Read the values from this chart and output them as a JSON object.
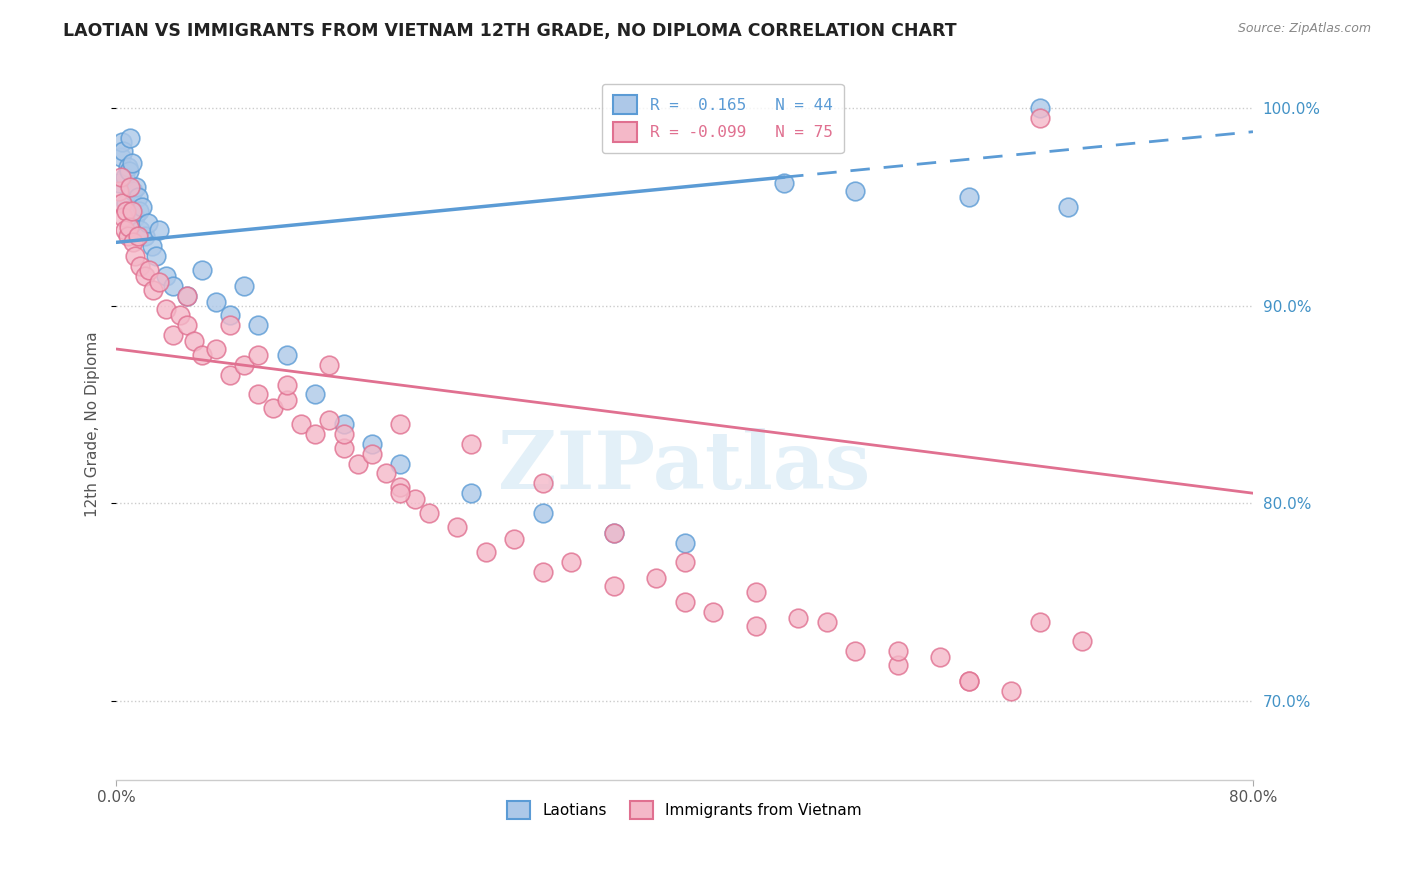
{
  "title": "LAOTIAN VS IMMIGRANTS FROM VIETNAM 12TH GRADE, NO DIPLOMA CORRELATION CHART",
  "source": "Source: ZipAtlas.com",
  "ylabel": "12th Grade, No Diploma",
  "watermark": "ZIPatlas",
  "bg_color": "#ffffff",
  "blue_color": "#5b9bd5",
  "blue_fill": "#adc8e8",
  "pink_color": "#e07090",
  "pink_fill": "#f4b8c8",
  "grid_color": "#cccccc",
  "axis_label_color": "#4292c6",
  "xlim": [
    0,
    80
  ],
  "ylim": [
    66,
    102
  ],
  "blue_line_x0": 0.0,
  "blue_line_y0": 93.2,
  "blue_line_x1": 47.0,
  "blue_line_y1": 96.5,
  "blue_dash_x0": 47.0,
  "blue_dash_y0": 96.5,
  "blue_dash_x1": 80.0,
  "blue_dash_y1": 98.8,
  "pink_line_x0": 0.0,
  "pink_line_y0": 87.8,
  "pink_line_x1": 80.0,
  "pink_line_y1": 80.5,
  "blue_x": [
    0.2,
    0.3,
    0.4,
    0.5,
    0.6,
    0.7,
    0.8,
    0.9,
    1.0,
    1.1,
    1.2,
    1.3,
    1.4,
    1.5,
    1.6,
    1.7,
    1.8,
    2.0,
    2.2,
    2.5,
    2.8,
    3.0,
    3.5,
    4.0,
    5.0,
    6.0,
    7.0,
    8.0,
    9.0,
    10.0,
    12.0,
    14.0,
    16.0,
    18.0,
    20.0,
    25.0,
    30.0,
    35.0,
    40.0,
    47.0,
    52.0,
    60.0,
    65.0,
    67.0
  ],
  "blue_y": [
    96.2,
    97.5,
    98.3,
    97.8,
    96.5,
    95.2,
    97.0,
    96.8,
    98.5,
    97.2,
    95.8,
    94.5,
    96.0,
    95.5,
    94.8,
    93.8,
    95.0,
    93.5,
    94.2,
    93.0,
    92.5,
    93.8,
    91.5,
    91.0,
    90.5,
    91.8,
    90.2,
    89.5,
    91.0,
    89.0,
    87.5,
    85.5,
    84.0,
    83.0,
    82.0,
    80.5,
    79.5,
    78.5,
    78.0,
    96.2,
    95.8,
    95.5,
    100.0,
    95.0
  ],
  "pink_x": [
    0.2,
    0.3,
    0.4,
    0.5,
    0.6,
    0.7,
    0.8,
    0.9,
    1.0,
    1.1,
    1.2,
    1.3,
    1.5,
    1.7,
    2.0,
    2.3,
    2.6,
    3.0,
    3.5,
    4.0,
    4.5,
    5.0,
    5.5,
    6.0,
    7.0,
    8.0,
    9.0,
    10.0,
    11.0,
    12.0,
    13.0,
    14.0,
    15.0,
    16.0,
    17.0,
    18.0,
    19.0,
    20.0,
    21.0,
    22.0,
    24.0,
    26.0,
    28.0,
    30.0,
    32.0,
    35.0,
    38.0,
    40.0,
    42.0,
    45.0,
    48.0,
    52.0,
    55.0,
    58.0,
    60.0,
    63.0,
    65.0,
    68.0,
    10.0,
    15.0,
    20.0,
    25.0,
    30.0,
    35.0,
    40.0,
    45.0,
    50.0,
    55.0,
    60.0,
    65.0,
    5.0,
    8.0,
    12.0,
    16.0,
    20.0
  ],
  "pink_y": [
    95.8,
    96.5,
    95.2,
    94.5,
    93.8,
    94.8,
    93.5,
    94.0,
    96.0,
    94.8,
    93.2,
    92.5,
    93.5,
    92.0,
    91.5,
    91.8,
    90.8,
    91.2,
    89.8,
    88.5,
    89.5,
    89.0,
    88.2,
    87.5,
    87.8,
    86.5,
    87.0,
    85.5,
    84.8,
    85.2,
    84.0,
    83.5,
    84.2,
    82.8,
    82.0,
    82.5,
    81.5,
    80.8,
    80.2,
    79.5,
    78.8,
    77.5,
    78.2,
    76.5,
    77.0,
    75.8,
    76.2,
    75.0,
    74.5,
    73.8,
    74.2,
    72.5,
    71.8,
    72.2,
    71.0,
    70.5,
    74.0,
    73.0,
    87.5,
    87.0,
    84.0,
    83.0,
    81.0,
    78.5,
    77.0,
    75.5,
    74.0,
    72.5,
    71.0,
    99.5,
    90.5,
    89.0,
    86.0,
    83.5,
    80.5
  ]
}
